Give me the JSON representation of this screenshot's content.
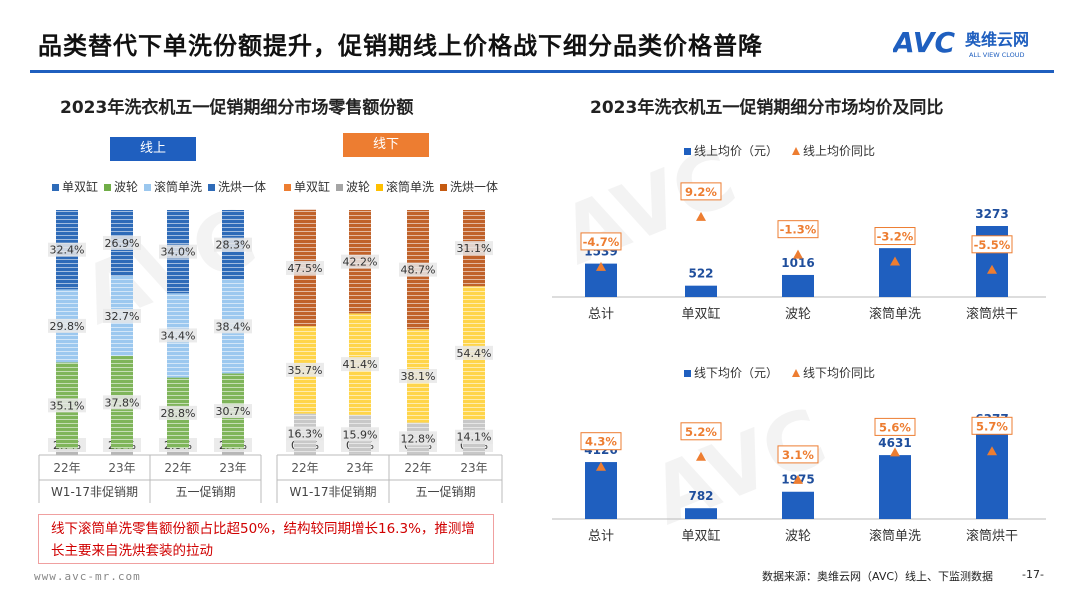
{
  "page": {
    "title": "品类替代下单洗份额提升，促销期线上价格战下细分品类价格普降",
    "logo_text": "AVC",
    "logo_cn": "奥维云网",
    "logo_en": "ALL VIEW CLOUD",
    "note": "线下滚筒单洗零售额份额占比超50%，结构较同期增长16.3%，推测增长主要来自洗烘套装的拉动",
    "website": "www.avc-mr.com",
    "source": "数据来源：奥维云网（AVC）线上、下监测数据",
    "page_number": "-17-",
    "watermark": "AVC",
    "colors": {
      "accent": "#1f5fbf",
      "orange": "#ed7d31",
      "note_red": "#d00000"
    }
  },
  "chart_data": [
    {
      "type": "bar",
      "stacked": true,
      "percent": true,
      "title": "2023年洗衣机五一促销期细分市场零售额份额",
      "groups": [
        {
          "label": "线上",
          "legend": [
            "单双缸",
            "波轮",
            "滚筒单洗",
            "洗烘一体"
          ],
          "colors": [
            "#9bc0e6",
            "#70ad47",
            "#a9cdf0",
            "#2e6bb8"
          ],
          "periods": [
            "W1-17非促销期",
            "五一促销期"
          ],
          "categories": [
            "22年",
            "23年",
            "22年",
            "23年"
          ],
          "series": [
            {
              "name": "单双缸",
              "values": [
                2.7,
                2.6,
                2.8,
                2.6
              ]
            },
            {
              "name": "波轮",
              "values": [
                35.1,
                37.8,
                28.8,
                30.7
              ]
            },
            {
              "name": "滚筒单洗",
              "values": [
                29.8,
                32.7,
                34.4,
                38.4
              ]
            },
            {
              "name": "洗烘一体",
              "values": [
                32.4,
                26.9,
                34.0,
                28.3
              ]
            }
          ]
        },
        {
          "label": "线下",
          "legend": [
            "单双缸",
            "波轮",
            "滚筒单洗",
            "洗烘一体"
          ],
          "colors": [
            "#f4b183",
            "#c9c9c9",
            "#ffd966",
            "#c55a11"
          ],
          "periods": [
            "W1-17非促销期",
            "五一促销期"
          ],
          "categories": [
            "22年",
            "23年",
            "22年",
            "23年"
          ],
          "series": [
            {
              "name": "单双缸",
              "values": [
                0.6,
                0.5,
                0.4,
                0.4
              ]
            },
            {
              "name": "波轮",
              "values": [
                16.3,
                15.9,
                12.8,
                14.1
              ]
            },
            {
              "name": "滚筒单洗",
              "values": [
                35.7,
                41.4,
                38.1,
                54.4
              ]
            },
            {
              "name": "洗烘一体",
              "values": [
                47.5,
                42.2,
                48.7,
                31.1
              ]
            }
          ]
        }
      ]
    },
    {
      "type": "bar",
      "title": "2023年洗衣机五一促销期细分市场均价及同比",
      "categories": [
        "总计",
        "单双缸",
        "波轮",
        "滚筒单洗",
        "滚筒烘干"
      ],
      "series": [
        {
          "name": "线上均价（元）",
          "values": [
            1539,
            522,
            1016,
            2252,
            3273
          ]
        },
        {
          "name": "线上均价同比",
          "values": [
            -4.7,
            9.2,
            -1.3,
            -3.2,
            -5.5
          ],
          "value_labels": [
            "-4.7%",
            "9.2%",
            "-1.3%",
            "-3.2%",
            "-5.5%"
          ]
        }
      ]
    },
    {
      "type": "bar",
      "title": "",
      "categories": [
        "总计",
        "单双缸",
        "波轮",
        "滚筒单洗",
        "滚筒烘干"
      ],
      "series": [
        {
          "name": "线下均价（元）",
          "values": [
            4126,
            782,
            1975,
            4631,
            6377
          ]
        },
        {
          "name": "线下均价同比",
          "values": [
            4.3,
            5.2,
            3.1,
            5.6,
            5.7
          ],
          "value_labels": [
            "4.3%",
            "5.2%",
            "3.1%",
            "5.6%",
            "5.7%"
          ]
        }
      ]
    }
  ]
}
